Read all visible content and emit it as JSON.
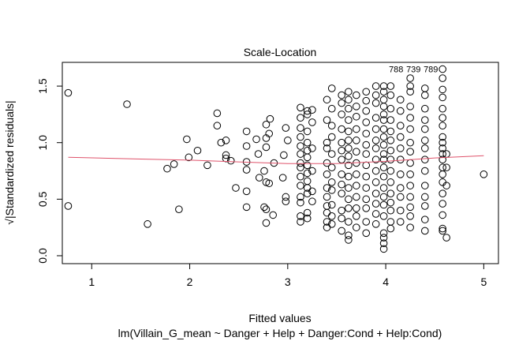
{
  "chart_data": {
    "type": "scatter",
    "title": "Scale-Location",
    "xlabel": "Fitted values",
    "ylabel": "√|Standardized residuals|",
    "subtitle": "lm(Villain_G_mean ~ Danger + Help + Danger:Cond + Help:Cond)",
    "xlim": [
      0.7,
      5.15
    ],
    "ylim": [
      -0.07,
      1.71
    ],
    "x_ticks": [
      1,
      2,
      3,
      4,
      5
    ],
    "x_tick_labels": [
      "1",
      "2",
      "3",
      "4",
      "5"
    ],
    "y_ticks": [
      0.0,
      0.5,
      1.0,
      1.5
    ],
    "y_tick_labels": [
      "0.0",
      "0.5",
      "1.0",
      "1.5"
    ],
    "grid": false,
    "point_color": "#000000",
    "smooth_color": "#DF536B",
    "sparse_points": [
      [
        0.76,
        1.44
      ],
      [
        1.36,
        1.34
      ],
      [
        0.76,
        0.44
      ],
      [
        1.57,
        0.28
      ],
      [
        1.77,
        0.77
      ],
      [
        1.84,
        0.81
      ],
      [
        1.89,
        0.41
      ],
      [
        1.97,
        1.03
      ],
      [
        1.99,
        0.87
      ],
      [
        2.08,
        0.93
      ],
      [
        2.18,
        0.8
      ],
      [
        2.28,
        1.26
      ],
      [
        2.28,
        1.15
      ],
      [
        2.32,
        1.0
      ],
      [
        2.37,
        1.02
      ],
      [
        2.37,
        0.89
      ],
      [
        2.37,
        0.86
      ],
      [
        2.42,
        0.84
      ],
      [
        2.47,
        0.6
      ],
      [
        2.58,
        1.1
      ],
      [
        2.58,
        0.97
      ],
      [
        2.58,
        0.83
      ],
      [
        2.58,
        0.76
      ],
      [
        2.58,
        0.57
      ],
      [
        2.58,
        0.43
      ],
      [
        2.68,
        1.03
      ],
      [
        2.7,
        0.9
      ],
      [
        2.71,
        0.69
      ],
      [
        2.76,
        0.75
      ],
      [
        2.76,
        0.43
      ],
      [
        2.78,
        1.16
      ],
      [
        2.78,
        0.96
      ],
      [
        2.78,
        1.04
      ],
      [
        2.78,
        0.65
      ],
      [
        2.81,
        0.64
      ],
      [
        2.78,
        0.41
      ],
      [
        2.78,
        0.29
      ],
      [
        2.81,
        1.08
      ],
      [
        2.82,
        1.21
      ],
      [
        2.85,
        0.36
      ],
      [
        2.86,
        0.82
      ],
      [
        2.95,
        0.69
      ],
      [
        2.96,
        0.89
      ],
      [
        2.98,
        1.13
      ],
      [
        3.0,
        1.02
      ],
      [
        2.98,
        0.52
      ],
      [
        2.98,
        0.48
      ],
      [
        5.0,
        0.72
      ]
    ],
    "columns": [
      {
        "x": 3.13,
        "y": [
          1.31,
          1.22,
          1.13,
          1.05,
          0.97,
          0.9,
          0.82,
          0.78,
          0.7,
          0.62,
          0.52,
          0.47,
          0.35,
          0.3
        ]
      },
      {
        "x": 3.2,
        "y": [
          1.28,
          1.25,
          1.1,
          1.0,
          0.93,
          0.87,
          0.8,
          0.73,
          0.66,
          0.6,
          0.55,
          0.38,
          0.33
        ]
      },
      {
        "x": 3.25,
        "y": [
          1.29,
          1.18,
          0.95,
          0.75,
          0.57,
          0.48
        ]
      },
      {
        "x": 3.4,
        "y": [
          1.38,
          1.2,
          1.0,
          0.95,
          0.82,
          0.72,
          0.6,
          0.52,
          0.44,
          0.38,
          0.3,
          0.25
        ]
      },
      {
        "x": 3.45,
        "y": [
          1.48,
          1.3,
          1.15,
          1.05,
          0.9,
          0.78,
          0.65,
          0.58,
          0.45,
          0.35,
          0.28
        ]
      },
      {
        "x": 3.55,
        "y": [
          1.42,
          1.35,
          1.25,
          1.12,
          1.0,
          0.93,
          0.85,
          0.72,
          0.63,
          0.55,
          0.4,
          0.33,
          0.22
        ]
      },
      {
        "x": 3.62,
        "y": [
          1.45,
          1.38,
          1.3,
          1.2,
          1.1,
          1.02,
          0.95,
          0.88,
          0.8,
          0.7,
          0.6,
          0.5,
          0.42,
          0.3,
          0.18,
          0.14
        ]
      },
      {
        "x": 3.7,
        "y": [
          1.42,
          1.32,
          1.23,
          1.12,
          1.02,
          0.92,
          0.82,
          0.72,
          0.62,
          0.52,
          0.42,
          0.35,
          0.25
        ]
      },
      {
        "x": 3.8,
        "y": [
          1.45,
          1.37,
          1.28,
          1.18,
          1.08,
          0.98,
          0.9,
          0.8,
          0.7,
          0.6,
          0.5,
          0.42,
          0.3,
          0.2
        ]
      },
      {
        "x": 3.9,
        "y": [
          1.5,
          1.42,
          1.35,
          1.22,
          1.12,
          1.02,
          0.95,
          0.85,
          0.75,
          0.65,
          0.55,
          0.46,
          0.37,
          0.28
        ]
      },
      {
        "x": 3.98,
        "y": [
          1.5,
          1.45,
          1.38,
          1.32,
          1.25,
          1.2,
          1.12,
          1.05,
          0.98,
          0.9,
          0.85,
          0.78,
          0.7,
          0.6,
          0.52,
          0.45,
          0.35,
          0.2,
          0.16,
          0.11,
          0.06
        ]
      },
      {
        "x": 4.05,
        "y": [
          1.5,
          1.42,
          1.3,
          1.2,
          1.1,
          1.02,
          0.93,
          0.85,
          0.75,
          0.65,
          0.55,
          0.47,
          0.4,
          0.3,
          0.24
        ]
      },
      {
        "x": 4.15,
        "y": [
          1.38,
          1.28,
          1.15,
          1.05,
          0.95,
          0.85,
          0.72,
          0.6,
          0.52,
          0.4,
          0.3
        ]
      },
      {
        "x": 4.25,
        "y": [
          1.57,
          1.5,
          1.45,
          1.32,
          1.22,
          1.12,
          1.0,
          0.92,
          0.82,
          0.72,
          0.62,
          0.52,
          0.43,
          0.35,
          0.25
        ]
      },
      {
        "x": 4.4,
        "y": [
          1.48,
          1.42,
          1.3,
          1.2,
          1.12,
          1.02,
          0.95,
          0.85,
          0.75,
          0.62,
          0.52,
          0.44,
          0.32,
          0.22
        ]
      },
      {
        "x": 4.58,
        "y": [
          1.65,
          1.57,
          1.47,
          1.4,
          1.3,
          1.22,
          1.15,
          1.05,
          1.0,
          0.95,
          0.9,
          0.85,
          0.78,
          0.72,
          0.65,
          0.55,
          0.46,
          0.36,
          0.24,
          0.22
        ]
      },
      {
        "x": 4.62,
        "y": [
          0.9,
          0.78,
          0.62,
          0.16
        ]
      }
    ],
    "smooth_line": {
      "x": [
        0.76,
        1.5,
        2.0,
        2.5,
        3.0,
        3.5,
        4.0,
        4.5,
        5.0
      ],
      "y": [
        0.87,
        0.855,
        0.845,
        0.83,
        0.815,
        0.815,
        0.835,
        0.865,
        0.885
      ]
    },
    "point_labels": [
      {
        "text": "788",
        "x": 4.4,
        "y": 1.65
      },
      {
        "text": "739",
        "x": 4.43,
        "y": 1.65
      },
      {
        "text": "789",
        "x": 4.46,
        "y": 1.65
      }
    ]
  }
}
